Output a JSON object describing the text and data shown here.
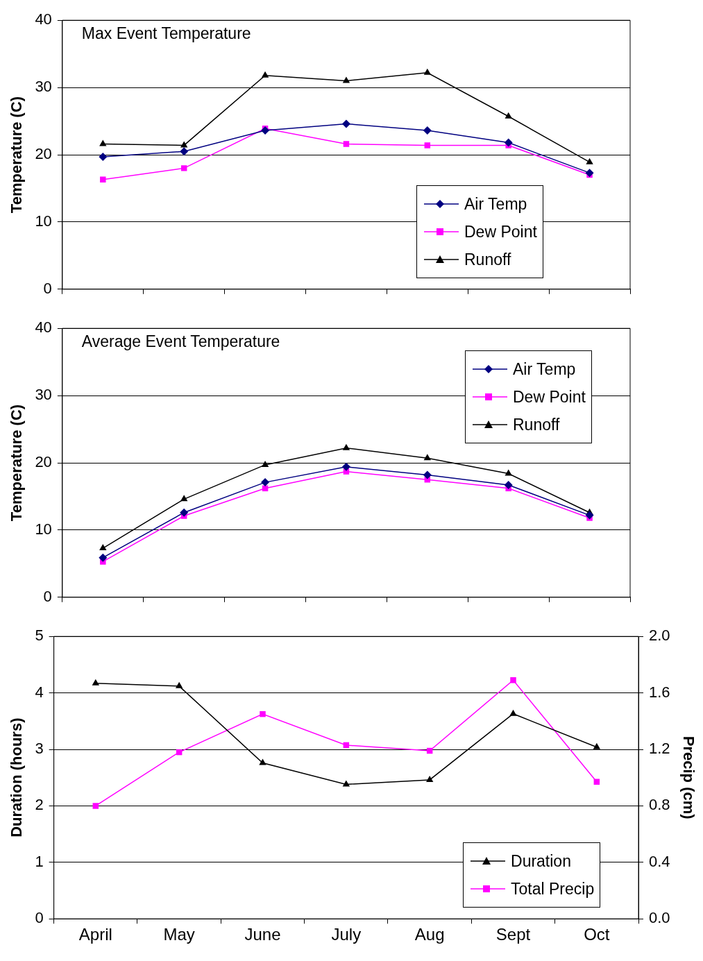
{
  "chart_data": [
    {
      "type": "line",
      "title": "Max Event Temperature",
      "ylabel": "Temperature (C)",
      "categories": [
        null,
        null,
        null,
        null,
        null,
        null,
        null
      ],
      "ylim": [
        0,
        40
      ],
      "yticks": [
        0,
        10,
        20,
        30,
        40
      ],
      "grid": "y",
      "legend": "bottom right",
      "tick_labels": "y",
      "series": [
        {
          "name": "Air Temp",
          "color": "#000080",
          "marker": "diamond",
          "values": [
            19.7,
            20.5,
            23.6,
            24.6,
            23.6,
            21.8,
            17.3
          ]
        },
        {
          "name": "Dew Point",
          "color": "#ff00ff",
          "marker": "square",
          "values": [
            16.3,
            18.0,
            23.9,
            21.6,
            21.4,
            21.4,
            17.0
          ]
        },
        {
          "name": "Runoff",
          "color": "#000000",
          "marker": "triangle",
          "values": [
            21.6,
            21.4,
            31.8,
            31.0,
            32.2,
            25.7,
            18.9
          ]
        }
      ]
    },
    {
      "type": "line",
      "title": "Average Event Temperature",
      "ylabel": "Temperature (C)",
      "categories": [
        null,
        null,
        null,
        null,
        null,
        null,
        null
      ],
      "ylim": [
        0,
        40
      ],
      "yticks": [
        0,
        10,
        20,
        30,
        40
      ],
      "grid": "y",
      "legend": "top right",
      "tick_labels": "y",
      "series": [
        {
          "name": "Air Temp",
          "color": "#000080",
          "marker": "diamond",
          "values": [
            5.9,
            12.6,
            17.1,
            19.4,
            18.2,
            16.7,
            12.2
          ]
        },
        {
          "name": "Dew Point",
          "color": "#ff00ff",
          "marker": "square",
          "values": [
            5.3,
            12.1,
            16.2,
            18.7,
            17.5,
            16.2,
            11.8
          ]
        },
        {
          "name": "Runoff",
          "color": "#000000",
          "marker": "triangle",
          "values": [
            7.3,
            14.6,
            19.7,
            22.2,
            20.7,
            18.4,
            12.6
          ]
        }
      ]
    },
    {
      "type": "line",
      "ylabel": "Duration (hours)",
      "y2label": "Precip (cm)",
      "categories": [
        "April",
        "May",
        "June",
        "July",
        "Aug",
        "Sept",
        "Oct"
      ],
      "ylim": [
        0,
        5
      ],
      "yticks": [
        0,
        1,
        2,
        3,
        4,
        5
      ],
      "y2lim": [
        0,
        2
      ],
      "y2ticks": [
        {
          "value": 0,
          "label": "0.0"
        },
        0.4,
        0.8,
        1.2,
        1.6,
        {
          "value": 2,
          "label": "2.0"
        }
      ],
      "grid": "y",
      "legend": "bottom right",
      "series": [
        {
          "name": "Duration",
          "color": "#000000",
          "marker": "triangle",
          "values": [
            4.17,
            4.12,
            2.76,
            2.38,
            2.46,
            3.63,
            3.04
          ]
        },
        {
          "name": "Total Precip",
          "color": "#ff00ff",
          "marker": "square",
          "axis": "y2",
          "values": [
            0.8,
            1.18,
            1.45,
            1.23,
            1.19,
            1.69,
            0.97
          ]
        }
      ]
    }
  ]
}
